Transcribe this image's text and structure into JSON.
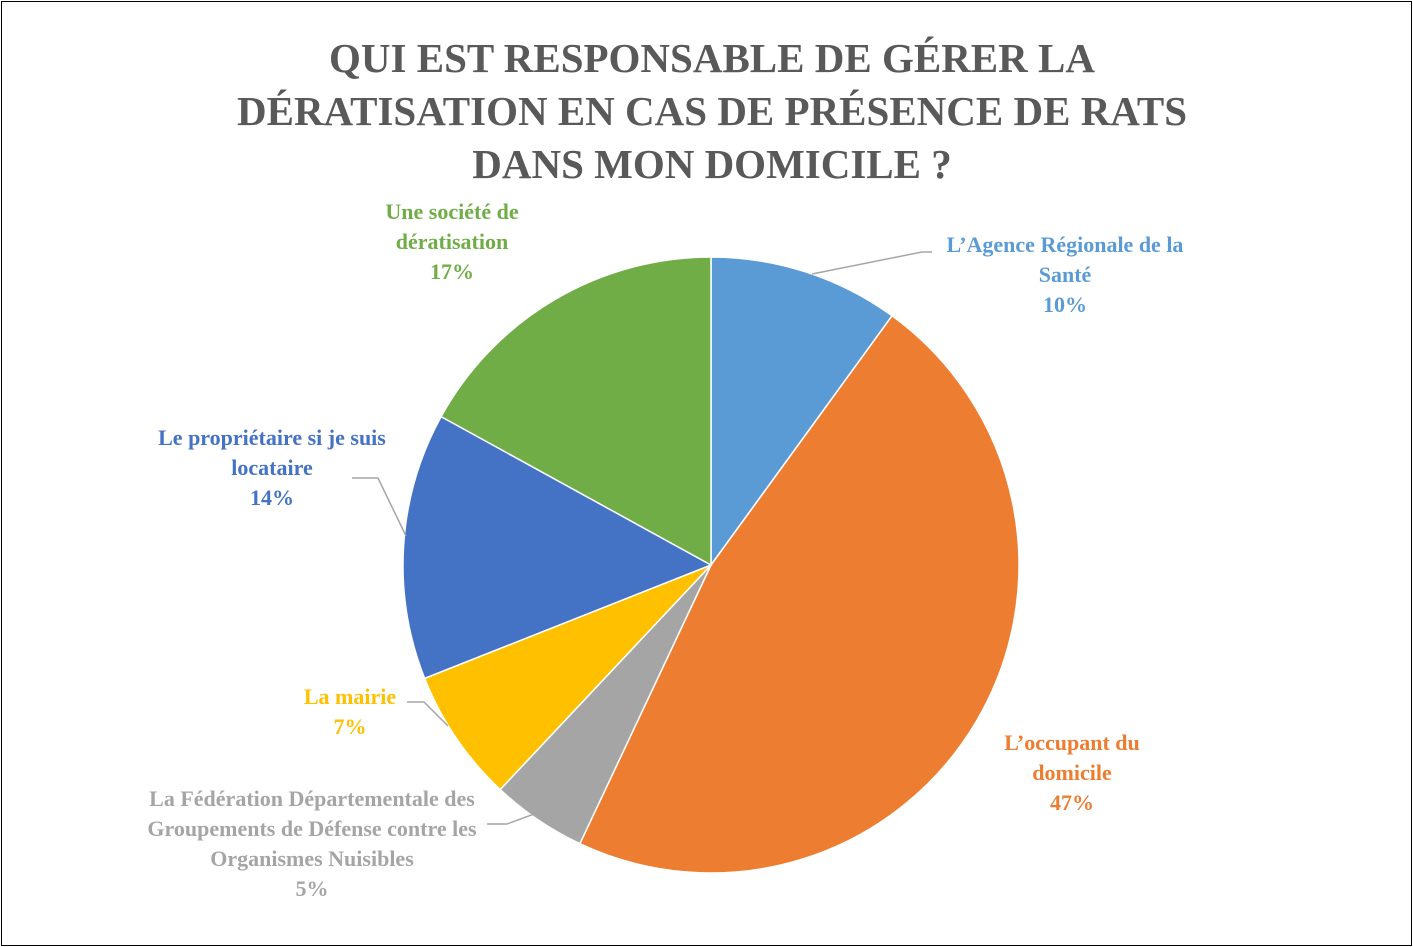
{
  "chart_data": {
    "type": "pie",
    "title": "QUI EST RESPONSABLE DE GÉRER LA DÉRATISATION EN CAS DE PRÉSENCE DE RATS DANS MON DOMICILE ?",
    "categories": [
      "L’Agence Régionale de la Santé",
      "L’occupant du domicile",
      "La Fédération Départementale des Groupements de Défense contre les Organismes Nuisibles",
      "La mairie",
      "Le propriétaire si je suis locataire",
      "Une société de dératisation"
    ],
    "values": [
      10,
      47,
      5,
      7,
      14,
      17
    ],
    "value_labels": [
      "10%",
      "47%",
      "5%",
      "7%",
      "14%",
      "17%"
    ],
    "colors": [
      "#5b9bd5",
      "#ed7d31",
      "#a5a5a5",
      "#ffc000",
      "#4472c4",
      "#70ad47"
    ]
  }
}
